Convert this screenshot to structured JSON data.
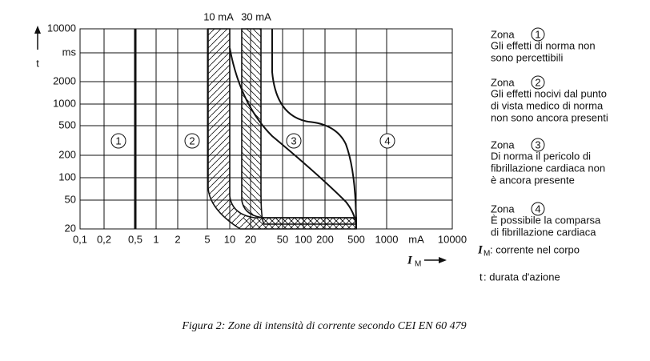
{
  "y_axis": {
    "label": "t",
    "unit": "ms",
    "ticks": [
      "10000",
      "2000",
      "1000",
      "500",
      "200",
      "100",
      "50",
      "20"
    ]
  },
  "x_axis": {
    "ticks": [
      "0,1",
      "0,2",
      "0,5",
      "1",
      "2",
      "5",
      "10",
      "20",
      "50",
      "100",
      "200",
      "500",
      "1000",
      "10000"
    ],
    "unit": "mA",
    "label": "I",
    "label_sub": "M"
  },
  "curve_labels": [
    "10 mA",
    "30 mA"
  ],
  "zones": [
    {
      "label": "Zona",
      "number": "1",
      "lines": [
        "Gli effetti di norma non",
        "sono percettibili"
      ]
    },
    {
      "label": "Zona",
      "number": "2",
      "lines": [
        "Gli effetti nocivi dal punto",
        "di vista medico di norma",
        "non sono ancora presenti"
      ]
    },
    {
      "label": "Zona",
      "number": "3",
      "lines": [
        "Di norma il pericolo di",
        "fibrillazione cardiaca non",
        "è ancora presente"
      ]
    },
    {
      "label": "Zona",
      "number": "4",
      "lines": [
        "È possibile la comparsa",
        "di fibrillazione cardiaca"
      ]
    }
  ],
  "notes": [
    {
      "symbol": "I",
      "sub": "M",
      "text": ": corrente nel corpo"
    },
    {
      "symbol": "t",
      "text": ": durata d'azione"
    }
  ],
  "caption": "Figura 2: Zone  di intensità di corrente  secondo CEI EN 60  479"
}
